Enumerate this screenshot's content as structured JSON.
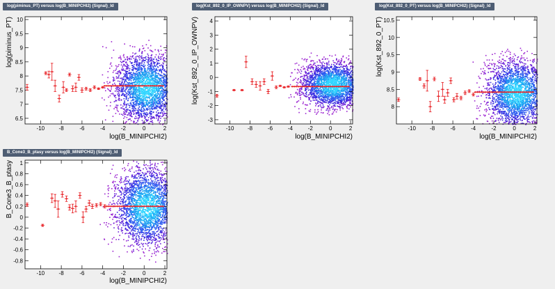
{
  "chart_data": [
    {
      "type": "scatter",
      "title": "log(piminus_PT) versus log(B_MINIPCHI2) {Signal}_Id",
      "xlabel": "log(B_MINIPCHI2)",
      "ylabel": "log(piminus_PT)",
      "xlim": [
        -11.5,
        2.2
      ],
      "ylim": [
        6.3,
        10.1
      ],
      "xticks": [
        -10,
        -8,
        -6,
        -4,
        -2,
        0,
        2
      ],
      "yticks": [
        6.5,
        7,
        7.5,
        8,
        8.5,
        9,
        9.5,
        10
      ],
      "density": {
        "center": [
          0.2,
          7.6
        ],
        "spread": [
          1.9,
          0.75
        ],
        "left_edge": -4.5
      },
      "profile": {
        "x": [
          -11.3,
          -9.5,
          -9.2,
          -8.9,
          -8.6,
          -8.2,
          -7.8,
          -7.5,
          -7.2,
          -6.9,
          -6.6,
          -6.3,
          -6.0,
          -5.6,
          -5.2,
          -4.8,
          -4.4,
          -4.0
        ],
        "y": [
          7.6,
          8.1,
          8.05,
          8.15,
          7.65,
          7.2,
          7.6,
          7.5,
          8.05,
          7.55,
          7.6,
          7.95,
          7.5,
          7.55,
          7.5,
          7.6,
          7.55,
          7.6
        ],
        "yerr": [
          0.1,
          0.05,
          0.12,
          0.3,
          0.2,
          0.12,
          0.2,
          0.05,
          0.05,
          0.1,
          0.15,
          0.1,
          0.08,
          0.05,
          0.05,
          0.05,
          0.03,
          0.03
        ],
        "plateau_y": 7.65
      }
    },
    {
      "type": "scatter",
      "title": "log(Kst_892_0_IP_OWNPV) versus log(B_MINIPCHI2) {Signal}_Id",
      "xlabel": "log(B_MINIPCHI2)",
      "ylabel": "log(Kst_892_0_IP_OWNPV)",
      "xlim": [
        -11.5,
        2.2
      ],
      "ylim": [
        -3.3,
        4.3
      ],
      "xticks": [
        -10,
        -8,
        -6,
        -4,
        -2,
        0,
        2
      ],
      "yticks": [
        -3,
        -2,
        -1,
        0,
        1,
        2,
        3,
        4
      ],
      "density": {
        "center": [
          0.2,
          -0.5
        ],
        "spread": [
          2.0,
          1.0
        ],
        "left_edge": -5.0
      },
      "profile": {
        "x": [
          -11.3,
          -9.6,
          -8.8,
          -8.4,
          -7.8,
          -7.4,
          -7.0,
          -6.6,
          -6.2,
          -5.8,
          -5.4,
          -5.0,
          -4.6,
          -4.2
        ],
        "y": [
          -1.3,
          -0.9,
          -0.9,
          1.1,
          -0.3,
          -0.5,
          -0.6,
          -0.3,
          -1.0,
          0.1,
          -0.7,
          -0.6,
          -0.7,
          -0.65
        ],
        "yerr": [
          0.1,
          0.05,
          0.05,
          0.4,
          0.2,
          0.2,
          0.3,
          0.2,
          0.15,
          0.3,
          0.1,
          0.05,
          0.05,
          0.05
        ],
        "plateau_y": -0.65
      }
    },
    {
      "type": "scatter",
      "title": "log(Kst_892_0_PT) versus log(B_MINIPCHI2) {Signal}_Id",
      "xlabel": "log(B_MINIPCHI2)",
      "ylabel": "log(Kst_892_0_PT)",
      "xlim": [
        -11.5,
        2.2
      ],
      "ylim": [
        7.5,
        10.6
      ],
      "xticks": [
        -10,
        -8,
        -6,
        -4,
        -2,
        0,
        2
      ],
      "yticks": [
        8,
        8.5,
        9,
        9.5,
        10,
        10.5
      ],
      "density": {
        "center": [
          0.2,
          8.4
        ],
        "spread": [
          1.9,
          0.6
        ],
        "left_edge": -4.5
      },
      "profile": {
        "x": [
          -11.3,
          -9.2,
          -8.8,
          -8.5,
          -8.2,
          -7.8,
          -7.4,
          -7.0,
          -6.8,
          -6.5,
          -6.2,
          -5.9,
          -5.6,
          -5.2,
          -4.8,
          -4.4,
          -4.0
        ],
        "y": [
          8.2,
          8.8,
          8.6,
          8.75,
          8.0,
          8.8,
          8.3,
          8.5,
          8.2,
          8.4,
          8.75,
          8.2,
          8.3,
          8.25,
          8.4,
          8.45,
          8.35
        ],
        "yerr": [
          0.05,
          0.04,
          0.06,
          0.3,
          0.15,
          0.05,
          0.15,
          0.2,
          0.1,
          0.1,
          0.08,
          0.06,
          0.08,
          0.05,
          0.05,
          0.04,
          0.04
        ],
        "plateau_y": 8.42
      }
    },
    {
      "type": "scatter",
      "title": "B_Cone3_B_ptasy versus log(B_MINIPCHI2) {Signal}_Id",
      "xlabel": "log(B_MINIPCHI2)",
      "ylabel": "B_Cone3_B_ptasy",
      "xlim": [
        -11.5,
        2.2
      ],
      "ylim": [
        -0.95,
        1.05
      ],
      "xticks": [
        -10,
        -8,
        -6,
        -4,
        -2,
        0,
        2
      ],
      "yticks": [
        -0.8,
        -0.6,
        -0.4,
        -0.2,
        0,
        0.2,
        0.4,
        0.6,
        0.8,
        1
      ],
      "density": {
        "center": [
          0.2,
          0.2
        ],
        "spread": [
          1.9,
          0.45
        ],
        "left_edge": -4.5
      },
      "profile": {
        "x": [
          -11.3,
          -9.8,
          -8.9,
          -8.6,
          -8.3,
          -7.9,
          -7.5,
          -7.2,
          -6.9,
          -6.6,
          -6.2,
          -5.9,
          -5.6,
          -5.3,
          -5.0,
          -4.6,
          -4.2,
          -3.8
        ],
        "y": [
          0.23,
          -0.15,
          0.35,
          0.3,
          0.15,
          0.42,
          0.34,
          0.18,
          0.16,
          0.2,
          0.4,
          0.0,
          0.15,
          0.26,
          0.2,
          0.22,
          0.24,
          0.2
        ],
        "yerr": [
          0.03,
          0.02,
          0.08,
          0.12,
          0.15,
          0.05,
          0.05,
          0.05,
          0.08,
          0.1,
          0.05,
          0.1,
          0.05,
          0.05,
          0.04,
          0.03,
          0.03,
          0.03
        ],
        "plateau_y": 0.2
      }
    }
  ]
}
